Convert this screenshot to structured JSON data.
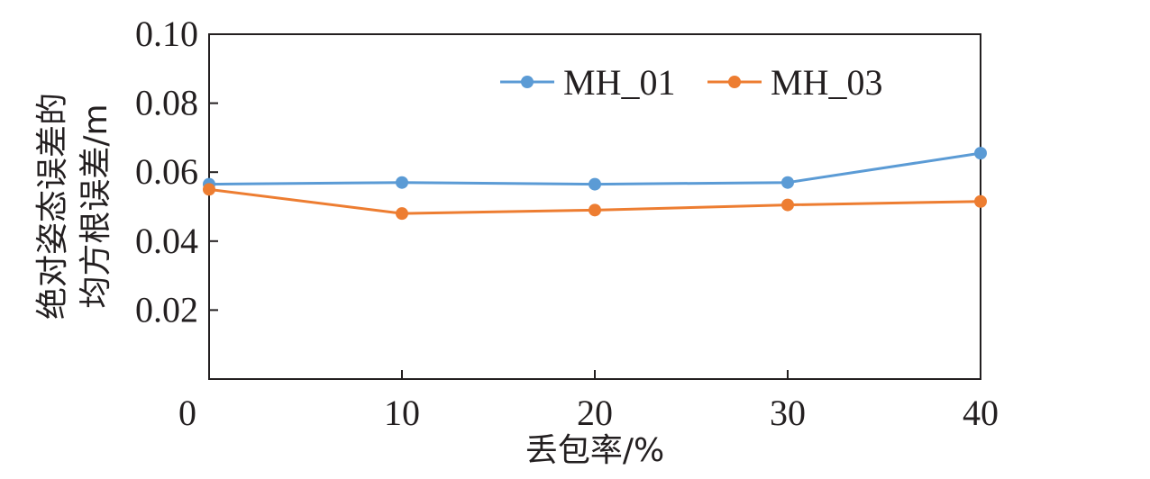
{
  "chart_data": {
    "type": "line",
    "x": [
      0,
      10,
      20,
      30,
      40
    ],
    "xticks": [
      "0",
      "10",
      "20",
      "30",
      "40"
    ],
    "yticks": [
      "0.02",
      "0.04",
      "0.06",
      "0.08",
      "0.10"
    ],
    "xlim": [
      0,
      40
    ],
    "ylim": [
      0,
      0.1
    ],
    "xlabel": "丢包率/%",
    "ylabel_lines": [
      "绝对姿态误差的",
      "均方根误差/m"
    ],
    "legend_position": "top-right",
    "grid": false,
    "series": [
      {
        "name": "MH_01",
        "color": "#5b9bd5",
        "values": [
          0.0565,
          0.057,
          0.0565,
          0.057,
          0.0655
        ]
      },
      {
        "name": "MH_03",
        "color": "#ed7d31",
        "values": [
          0.055,
          0.048,
          0.049,
          0.0505,
          0.0515
        ]
      }
    ]
  }
}
